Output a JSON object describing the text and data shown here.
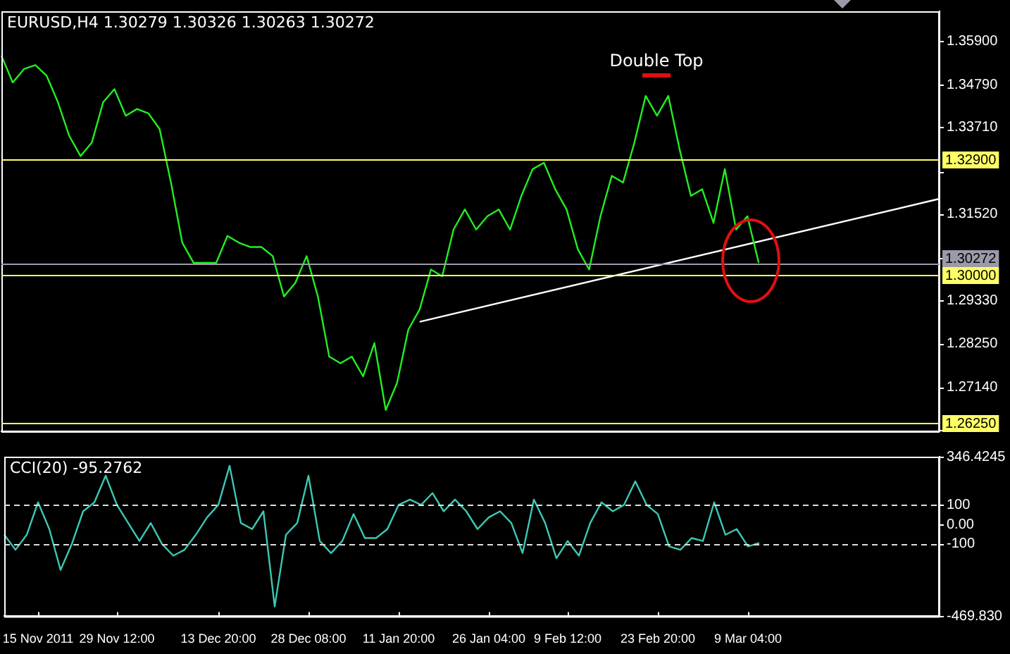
{
  "chart_data": [
    {
      "type": "line",
      "title": "EURUSD,H4 1.30279 1.30326 1.30263 1.30272",
      "categories": [
        null,
        null,
        null,
        null,
        null,
        null,
        null,
        null,
        null,
        null,
        null,
        null,
        null,
        null,
        null,
        null,
        null,
        null,
        null,
        null,
        null,
        null,
        null,
        null,
        null,
        null,
        null,
        null,
        null,
        null,
        null,
        null,
        null,
        null,
        null,
        null,
        null,
        null,
        null,
        null,
        null,
        null,
        null,
        null,
        null,
        null,
        null,
        null,
        null,
        null,
        null,
        null,
        null,
        null,
        null,
        null,
        null,
        null,
        null,
        null,
        null,
        null,
        null,
        null,
        null,
        null,
        null,
        null,
        null,
        null,
        null,
        null,
        null,
        null,
        null,
        null,
        null,
        null,
        null,
        null,
        null,
        null,
        null,
        null
      ],
      "series": [
        {
          "color": "#22ee22",
          "values": [
            1.3553,
            1.3485,
            1.3519,
            1.3529,
            1.3502,
            1.3435,
            1.335,
            1.3299,
            1.3333,
            1.3435,
            1.3468,
            1.3401,
            1.3418,
            1.3407,
            1.3367,
            1.3232,
            1.308,
            1.3029,
            1.3029,
            1.3029,
            1.3097,
            1.308,
            1.3069,
            1.3069,
            1.3046,
            1.2944,
            1.2978,
            1.3046,
            1.2944,
            1.2792,
            1.2775,
            1.2792,
            1.2742,
            1.2826,
            1.2657,
            1.2725,
            1.286,
            1.2911,
            1.3012,
            1.2995,
            1.3113,
            1.3164,
            1.3113,
            1.3147,
            1.3164,
            1.3113,
            1.3198,
            1.3266,
            1.3282,
            1.3215,
            1.3164,
            1.3063,
            1.3012,
            1.3147,
            1.3249,
            1.3232,
            1.3333,
            1.3451,
            1.3401,
            1.3451,
            1.3316,
            1.3198,
            1.3215,
            1.313,
            1.3266,
            1.3113,
            1.3147,
            1.3029,
            null,
            null,
            null,
            null,
            null,
            null,
            null,
            null,
            null,
            null,
            null,
            null,
            null,
            null,
            null,
            null
          ]
        },
        {
          "color": "#ffffff",
          "values": [
            null,
            null,
            null,
            null,
            null,
            null,
            null,
            null,
            null,
            null,
            null,
            null,
            null,
            null,
            null,
            null,
            null,
            null,
            null,
            null,
            null,
            null,
            null,
            null,
            null,
            null,
            null,
            null,
            null,
            null,
            null,
            null,
            null,
            null,
            null,
            null,
            null,
            1.288,
            null,
            null,
            null,
            null,
            null,
            null,
            null,
            null,
            null,
            null,
            null,
            null,
            null,
            null,
            null,
            null,
            null,
            null,
            null,
            null,
            null,
            null,
            null,
            null,
            null,
            null,
            null,
            null,
            null,
            null,
            null,
            null,
            null,
            null,
            null,
            null,
            null,
            null,
            null,
            null,
            null,
            null,
            null,
            null,
            null,
            1.3191
          ]
        }
      ],
      "ylim": [
        1.2603,
        1.3665
      ],
      "yticks": [
        {
          "value": 1.359,
          "label": "1.35900"
        },
        {
          "value": 1.3479,
          "label": "1.34790"
        },
        {
          "value": 1.3371,
          "label": "1.33710"
        },
        {
          "value": 1.326,
          "label": null
        },
        {
          "value": 1.3152,
          "label": "1.31520"
        },
        {
          "value": 1.3041,
          "label": null
        },
        {
          "value": 1.2933,
          "label": "1.29330"
        },
        {
          "value": 1.2825,
          "label": "1.28250"
        },
        {
          "value": 1.2714,
          "label": "1.27140"
        },
        {
          "value": 1.2606,
          "label": null
        }
      ],
      "ref_lines": [
        {
          "axis": "y",
          "value": 1.329,
          "label": "1.32900",
          "color": "#ffff66"
        },
        {
          "axis": "y",
          "value": 1.30272,
          "label": "1.30272",
          "color": "#9a9aa8"
        },
        {
          "axis": "y",
          "value": 1.3,
          "label": "1.30000",
          "color": "#ffff66"
        },
        {
          "axis": "y",
          "value": 1.2625,
          "label": "1.26250",
          "color": "#ffff66"
        }
      ],
      "annotations": [
        "Double Top"
      ],
      "tick_labels": "y",
      "legend": false,
      "grid": false,
      "marker": "none",
      "line_style": "solid"
    },
    {
      "type": "line",
      "title": "CCI(20) -95.2762",
      "categories": [
        null,
        null,
        null,
        "15 Nov 2011",
        null,
        null,
        null,
        null,
        null,
        null,
        "29 Nov 12:00",
        null,
        null,
        null,
        null,
        null,
        null,
        null,
        null,
        "13 Dec 20:00",
        null,
        null,
        null,
        null,
        null,
        null,
        null,
        "28 Dec 08:00",
        null,
        null,
        null,
        null,
        null,
        null,
        null,
        "11 Jan 20:00",
        null,
        null,
        null,
        null,
        null,
        null,
        null,
        "26 Jan 04:00",
        null,
        null,
        null,
        null,
        null,
        null,
        "9 Feb 12:00",
        null,
        null,
        null,
        null,
        null,
        null,
        null,
        "23 Feb 20:00",
        null,
        null,
        null,
        null,
        null,
        null,
        null,
        "9 Mar 04:00",
        null,
        null,
        null,
        null,
        null,
        null,
        null,
        null,
        null,
        null,
        null,
        null,
        null,
        null,
        null,
        null,
        null
      ],
      "series": [
        {
          "color": "#3cc8b4",
          "values": [
            -53,
            -130,
            -53,
            113,
            -24,
            -233,
            -100,
            67,
            113,
            249,
            100,
            7,
            -85,
            7,
            -100,
            -160,
            -130,
            -53,
            36,
            100,
            300,
            7,
            -24,
            67,
            -420,
            -53,
            7,
            249,
            -85,
            -147,
            -85,
            53,
            -70,
            -70,
            -24,
            100,
            127,
            100,
            160,
            67,
            127,
            67,
            -24,
            36,
            67,
            7,
            -147,
            127,
            7,
            -173,
            -85,
            -160,
            7,
            113,
            67,
            100,
            220,
            100,
            53,
            -113,
            -130,
            -70,
            -85,
            113,
            -53,
            -24,
            -113,
            -95,
            null,
            null,
            null,
            null,
            null,
            null,
            null,
            null,
            null,
            null,
            null,
            null,
            null,
            null,
            null,
            null
          ]
        }
      ],
      "ylim": [
        -469.83,
        346.4245
      ],
      "yticks": [
        {
          "value": 346.4245,
          "label": "346.4245"
        },
        100,
        {
          "value": 0,
          "label": "0.00"
        },
        -100,
        {
          "value": -469.83,
          "label": "-469.830"
        }
      ],
      "ref_lines": [
        {
          "axis": "y",
          "value": 100,
          "color": "#dddddd",
          "line_style": "dashed"
        },
        {
          "axis": "y",
          "value": -100,
          "color": "#dddddd",
          "line_style": "dashed"
        }
      ],
      "legend": false,
      "grid": false,
      "marker": "none",
      "line_style": "solid"
    }
  ]
}
